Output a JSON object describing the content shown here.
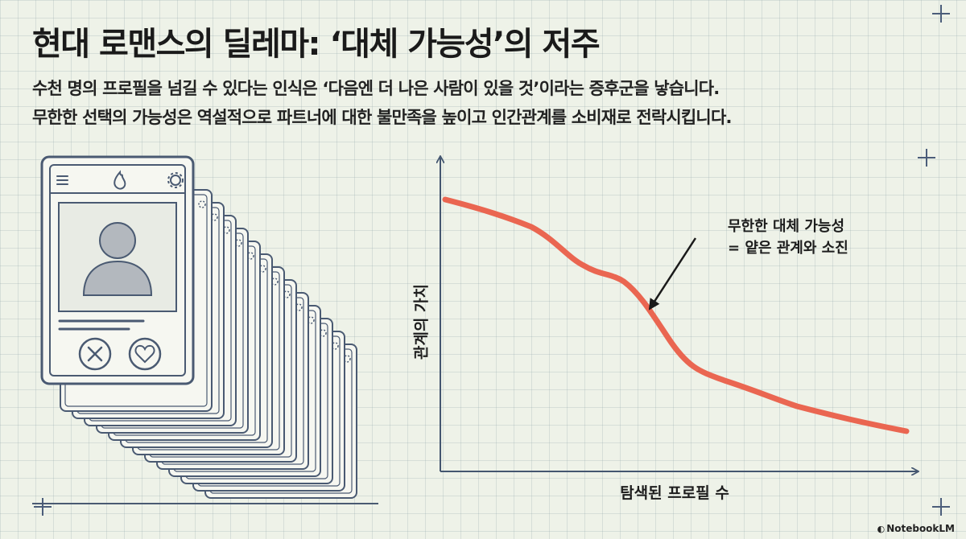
{
  "title": "현대 로맨스의 딜레마: ‘대체 가능성’의 저주",
  "subtitle": {
    "line1": "수천 명의 프로필을 넘길 수 있다는 인식은 ‘다음엔 더 나은 사람이 있을 것’이라는 증후군을 낳습니다.",
    "line2": "무한한 선택의 가능성은 역설적으로 파트너에 대한 불만족을 높이고 인간관계를 소비재로 전락시킵니다."
  },
  "illustration": {
    "icons": [
      "menu-icon",
      "flame-icon",
      "gear-icon",
      "user-silhouette-icon",
      "reject-x-icon",
      "like-heart-icon"
    ],
    "colors": {
      "stroke": "#4a5a72",
      "card_fill": "#f6f7f1",
      "photo_fill": "#e8ebe4",
      "avatar_fill": "#b3b8be"
    }
  },
  "chart": {
    "ylabel": "관계의 가치",
    "xlabel": "탐색된 프로필 수",
    "annotation": [
      "무한한 대체 가능성",
      "= 얕은 관계와 소진"
    ],
    "line_color": "#ea6651"
  },
  "brand": "NotebookLM"
}
